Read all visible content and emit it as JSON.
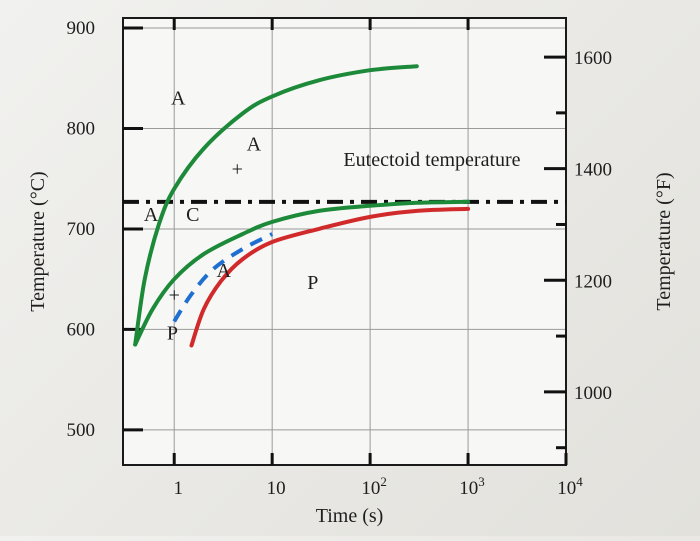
{
  "chart_data": {
    "type": "line",
    "x_scale": "log",
    "xlabel": "Time (s)",
    "ylabel": "Temperature (°C)",
    "y2label": "Temperature (°F)",
    "xlim": [
      0.3,
      10000
    ],
    "ylim": [
      465,
      910
    ],
    "x_ticks": [
      {
        "value": 1,
        "base": "1",
        "exp": ""
      },
      {
        "value": 10,
        "base": "10",
        "exp": ""
      },
      {
        "value": 100,
        "base": "10",
        "exp": "2"
      },
      {
        "value": 1000,
        "base": "10",
        "exp": "3"
      },
      {
        "value": 10000,
        "base": "10",
        "exp": "4"
      }
    ],
    "y_ticks": [
      500,
      600,
      700,
      800,
      900
    ],
    "y2_ticks": [
      {
        "label": "1000",
        "celsius": 537.8
      },
      {
        "label": "1200",
        "celsius": 648.9
      },
      {
        "label": "1400",
        "celsius": 760.0
      },
      {
        "label": "1600",
        "celsius": 871.1
      }
    ],
    "eutectoid": {
      "label": "Eutectoid temperature",
      "value": 727
    },
    "series": [
      {
        "color": "#1d8a3a",
        "style": "solid",
        "points": [
          [
            0.4,
            585
          ],
          [
            0.5,
            650
          ],
          [
            0.7,
            705
          ],
          [
            1,
            740
          ],
          [
            2,
            780
          ],
          [
            5,
            815
          ],
          [
            10,
            832
          ],
          [
            30,
            848
          ],
          [
            100,
            858
          ],
          [
            300,
            862
          ]
        ]
      },
      {
        "color": "#1d8a3a",
        "style": "solid",
        "points": [
          [
            0.4,
            585
          ],
          [
            0.6,
            620
          ],
          [
            1,
            650
          ],
          [
            2,
            675
          ],
          [
            5,
            695
          ],
          [
            10,
            707
          ],
          [
            30,
            718
          ],
          [
            100,
            723
          ],
          [
            300,
            726
          ],
          [
            1000,
            727
          ]
        ]
      },
      {
        "color": "#d12a2a",
        "style": "solid",
        "points": [
          [
            1.5,
            584
          ],
          [
            2,
            620
          ],
          [
            3,
            648
          ],
          [
            5,
            670
          ],
          [
            10,
            687
          ],
          [
            30,
            700
          ],
          [
            100,
            712
          ],
          [
            300,
            718
          ],
          [
            1000,
            720
          ]
        ]
      },
      {
        "color": "#1f6fd0",
        "style": "dashed",
        "points": [
          [
            1,
            608
          ],
          [
            1.5,
            635
          ],
          [
            2.5,
            660
          ],
          [
            5,
            680
          ],
          [
            10,
            695
          ]
        ]
      }
    ],
    "annotations": [
      {
        "text": "A",
        "x": 1.1,
        "y": 824
      },
      {
        "text": "A",
        "x": 6.5,
        "y": 778
      },
      {
        "text": "+",
        "x": 4.4,
        "y": 753
      },
      {
        "text": "A",
        "x": 0.58,
        "y": 708
      },
      {
        "text": "C",
        "x": 1.55,
        "y": 708
      },
      {
        "text": "A",
        "x": 3.2,
        "y": 652
      },
      {
        "text": "+",
        "x": 1.0,
        "y": 628
      },
      {
        "text": "P",
        "x": 0.96,
        "y": 590
      },
      {
        "text": "P",
        "x": 26,
        "y": 640
      }
    ]
  }
}
